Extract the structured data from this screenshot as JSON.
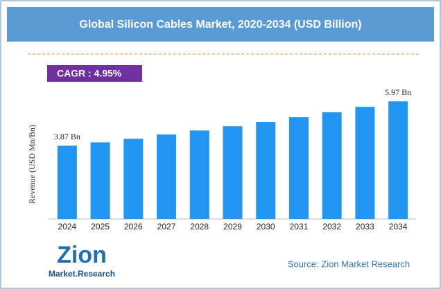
{
  "chart_data": {
    "type": "bar",
    "title": "Global Silicon Cables Market, 2020-2034 (USD Billion)",
    "y_label": "Revenue (USD Mn/Bn)",
    "annotations": [
      "CAGR : 4.95%"
    ],
    "source": "Source: Zion Market Research",
    "categories": [
      "2024",
      "2025",
      "2026",
      "2027",
      "2028",
      "2029",
      "2030",
      "2031",
      "2032",
      "2033",
      "2034"
    ],
    "values": [
      3.87,
      4.03,
      4.2,
      4.4,
      4.59,
      4.79,
      4.99,
      5.22,
      5.45,
      5.71,
      5.97
    ],
    "value_labels": [
      "3.87 Bn",
      null,
      null,
      null,
      null,
      null,
      null,
      null,
      null,
      null,
      "5.97 Bn"
    ],
    "color": "#2196f3",
    "ylim": [
      0.4,
      6.6
    ]
  },
  "logo": {
    "name": "Zion",
    "tagline": "Market.Research"
  }
}
